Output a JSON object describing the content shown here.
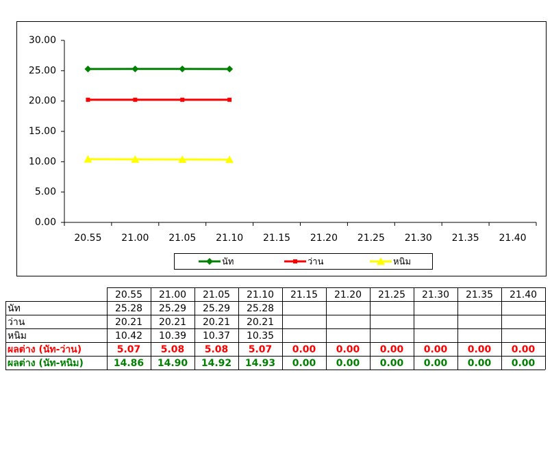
{
  "chart_data": {
    "type": "line",
    "categories": [
      "20.55",
      "21.00",
      "21.05",
      "21.10",
      "21.15",
      "21.20",
      "21.25",
      "21.30",
      "21.35",
      "21.40"
    ],
    "series": [
      {
        "name": "นัท",
        "color": "#008000",
        "marker": "diamond",
        "values": [
          25.28,
          25.29,
          25.29,
          25.28,
          null,
          null,
          null,
          null,
          null,
          null
        ]
      },
      {
        "name": "ว่าน",
        "color": "#ff0000",
        "marker": "square",
        "values": [
          20.21,
          20.21,
          20.21,
          20.21,
          null,
          null,
          null,
          null,
          null,
          null
        ]
      },
      {
        "name": "หนิม",
        "color": "#ffff00",
        "marker": "triangle",
        "values": [
          10.42,
          10.39,
          10.37,
          10.35,
          null,
          null,
          null,
          null,
          null,
          null
        ]
      }
    ],
    "ylim": [
      0,
      30
    ],
    "yticks": [
      {
        "value": 0,
        "label": "0.00"
      },
      {
        "value": 5,
        "label": "5.00"
      },
      {
        "value": 10,
        "label": "10.00"
      },
      {
        "value": 15,
        "label": "15.00"
      },
      {
        "value": 20,
        "label": "20.00"
      },
      {
        "value": 25,
        "label": "25.00"
      },
      {
        "value": 30,
        "label": "30.00"
      }
    ],
    "legend": "bottom"
  },
  "table": {
    "rows": [
      {
        "label": "ผลต่าง (นัท-ว่าน)",
        "color": "#ff0000",
        "cells": [
          "5.07",
          "5.08",
          "5.08",
          "5.07",
          "0.00",
          "0.00",
          "0.00",
          "0.00",
          "0.00",
          "0.00"
        ]
      },
      {
        "label": "ผลต่าง (นัท-หนิม)",
        "color": "#008000",
        "cells": [
          "14.86",
          "14.90",
          "14.92",
          "14.93",
          "0.00",
          "0.00",
          "0.00",
          "0.00",
          "0.00",
          "0.00"
        ]
      }
    ]
  }
}
